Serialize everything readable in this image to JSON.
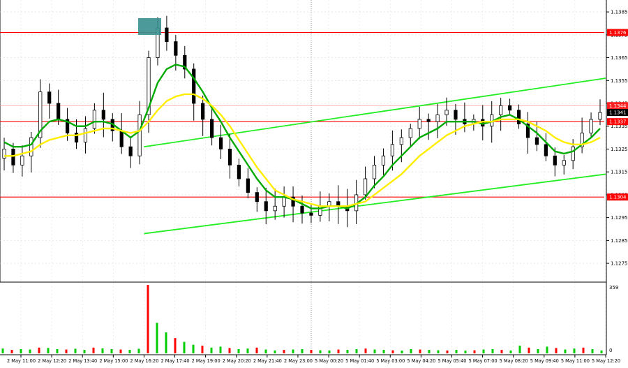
{
  "chart_data": {
    "type": "candlestick",
    "price_axis": {
      "ticks": [
        "1.1385",
        "1.1375",
        "1.1365",
        "1.1355",
        "1.1345",
        "1.1335",
        "1.1325",
        "1.1315",
        "1.1305",
        "1.1295",
        "1.1285",
        "1.1275"
      ],
      "min": 1.1268,
      "max": 1.1389
    },
    "level_lines": [
      {
        "label": "1.1376",
        "value": 1.1376,
        "color": "#ff0000"
      },
      {
        "label": "1.1337",
        "value": 1.1337,
        "color": "#ff0000"
      },
      {
        "label": "1.1304",
        "value": 1.1304,
        "color": "#ff0000"
      }
    ],
    "price_tags": [
      {
        "label": "1.1344",
        "value": 1.1344,
        "color": "#ff2020"
      },
      {
        "label": "1.1341",
        "value": 1.1341,
        "color": "#000000"
      }
    ],
    "time_labels": [
      "2 May 11:00",
      "2 May 12:20",
      "2 May 13:40",
      "2 May 15:00",
      "2 May 16:20",
      "2 May 17:40",
      "2 May 19:00",
      "2 May 20:20",
      "2 May 21:40",
      "2 May 23:00",
      "5 May 00:20",
      "5 May 01:40",
      "5 May 03:00",
      "5 May 04:20",
      "5 May 05:40",
      "5 May 07:00",
      "5 May 08:20",
      "5 May 09:40",
      "5 May 11:00",
      "5 May 12:20"
    ],
    "volume_axis": {
      "max_label": "359",
      "zero_label": "0",
      "max": 359
    },
    "close_series": [
      1.1325,
      1.1318,
      1.1322,
      1.133,
      1.135,
      1.1345,
      1.1338,
      1.1332,
      1.1328,
      1.1334,
      1.1342,
      1.1338,
      1.1333,
      1.1326,
      1.1322,
      1.134,
      1.1365,
      1.1378,
      1.1372,
      1.1366,
      1.136,
      1.1345,
      1.1338,
      1.133,
      1.1325,
      1.1318,
      1.1312,
      1.1306,
      1.1302,
      1.1298,
      1.13,
      1.1304,
      1.13,
      1.1297,
      1.1296,
      1.13,
      1.1302,
      1.13,
      1.1298,
      1.1305,
      1.1312,
      1.1318,
      1.1322,
      1.1327,
      1.133,
      1.1334,
      1.1338,
      1.1337,
      1.134,
      1.1342,
      1.1338,
      1.1336,
      1.1338,
      1.1335,
      1.134,
      1.1344,
      1.1342,
      1.1336,
      1.133,
      1.1327,
      1.1322,
      1.1318,
      1.132,
      1.1326,
      1.1332,
      1.1338,
      1.1341
    ],
    "volume_series": [
      25,
      18,
      22,
      20,
      30,
      28,
      22,
      20,
      24,
      18,
      30,
      26,
      22,
      20,
      18,
      24,
      359,
      160,
      110,
      80,
      60,
      45,
      40,
      30,
      35,
      28,
      22,
      25,
      30,
      20,
      15,
      18,
      20,
      22,
      18,
      16,
      15,
      20,
      18,
      22,
      25,
      20,
      18,
      16,
      14,
      22,
      20,
      18,
      16,
      15,
      18,
      14,
      16,
      20,
      22,
      18,
      15,
      40,
      30,
      22,
      35,
      28,
      20,
      25,
      30,
      22,
      15
    ],
    "ma_series": [
      {
        "color": "#00aa00",
        "values": [
          1.1328,
          1.1326,
          1.1326,
          1.1327,
          1.1333,
          1.1337,
          1.1338,
          1.1337,
          1.1335,
          1.1335,
          1.1337,
          1.1337,
          1.1336,
          1.1333,
          1.133,
          1.1333,
          1.1343,
          1.1354,
          1.136,
          1.1362,
          1.1361,
          1.1356,
          1.135,
          1.1343,
          1.1337,
          1.133,
          1.1324,
          1.1318,
          1.1312,
          1.1307,
          1.1304,
          1.1304,
          1.1303,
          1.1301,
          1.1299,
          1.1299,
          1.13,
          1.13,
          1.1299,
          1.1301,
          1.1304,
          1.1309,
          1.1313,
          1.1318,
          1.1322,
          1.1326,
          1.133,
          1.1332,
          1.1334,
          1.1337,
          1.1337,
          1.1337,
          1.1337,
          1.1336,
          1.1337,
          1.1339,
          1.134,
          1.1338,
          1.1335,
          1.1332,
          1.1328,
          1.1324,
          1.1323,
          1.1324,
          1.1327,
          1.133,
          1.1334
        ]
      },
      {
        "color": "#ffee00",
        "values": [
          1.1322,
          1.1322,
          1.1323,
          1.1324,
          1.1327,
          1.1329,
          1.133,
          1.1331,
          1.1331,
          1.1332,
          1.1333,
          1.1334,
          1.1334,
          1.1333,
          1.1332,
          1.1333,
          1.1337,
          1.1342,
          1.1346,
          1.1348,
          1.1349,
          1.1349,
          1.1347,
          1.1344,
          1.134,
          1.1335,
          1.1329,
          1.1323,
          1.1317,
          1.1312,
          1.1307,
          1.1305,
          1.1303,
          1.1302,
          1.1301,
          1.13,
          1.13,
          1.13,
          1.13,
          1.1301,
          1.1302,
          1.1305,
          1.1308,
          1.1311,
          1.1314,
          1.1318,
          1.1322,
          1.1325,
          1.1328,
          1.1331,
          1.1333,
          1.1335,
          1.1336,
          1.1337,
          1.1337,
          1.1338,
          1.1338,
          1.1338,
          1.1337,
          1.1335,
          1.1333,
          1.133,
          1.1328,
          1.1327,
          1.1327,
          1.1328,
          1.133
        ]
      }
    ],
    "trend_lines": [
      {
        "color": "#22ee22",
        "points": [
          [
            "2 May 16:20",
            1.1326
          ],
          [
            "5 May 12:20",
            1.1356
          ]
        ]
      },
      {
        "color": "#22ee22",
        "points": [
          [
            "2 May 16:20",
            1.1288
          ],
          [
            "5 May 12:20",
            1.1314
          ]
        ]
      }
    ]
  }
}
